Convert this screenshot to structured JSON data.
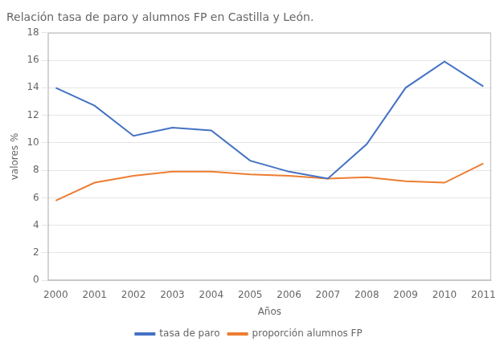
{
  "chart_data": {
    "type": "line",
    "title": "Relación tasa de paro y alumnos FP en Castilla y León.",
    "xlabel": "Años",
    "ylabel": "valores %",
    "x": [
      2000,
      2001,
      2002,
      2003,
      2004,
      2005,
      2006,
      2007,
      2008,
      2009,
      2010,
      2011
    ],
    "series": [
      {
        "name": "tasa de paro",
        "color": "#4472C4",
        "values": [
          14.0,
          12.7,
          10.5,
          11.1,
          10.9,
          8.7,
          7.9,
          7.4,
          9.9,
          14.0,
          15.9,
          14.1
        ]
      },
      {
        "name": "proporción alumnos FP",
        "color": "#ED7D31",
        "values": [
          5.8,
          7.1,
          7.6,
          7.9,
          7.9,
          7.7,
          7.6,
          7.4,
          7.5,
          7.2,
          7.1,
          8.5
        ]
      }
    ],
    "xlim": [
      1999.8,
      2011.2
    ],
    "xticks": [
      2000,
      2001,
      2002,
      2003,
      2004,
      2005,
      2006,
      2007,
      2008,
      2009,
      2010,
      2011
    ],
    "ylim": [
      0,
      18
    ],
    "yticks": [
      0,
      2,
      4,
      6,
      8,
      10,
      12,
      14,
      16,
      18
    ],
    "grid": "y",
    "legend": "bottom"
  }
}
